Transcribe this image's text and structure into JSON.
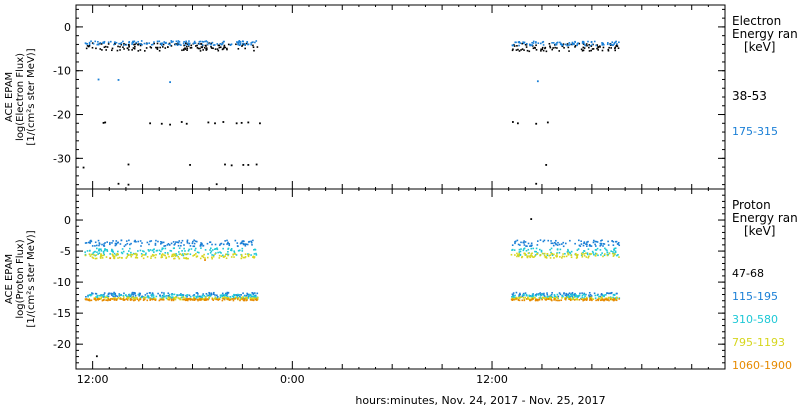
{
  "chart_data": [
    {
      "type": "scatter",
      "panel": "electron",
      "ylabel": [
        "ACE EPAM",
        "log(Electron Flux)",
        "[1/(cm²s ster MeV)]"
      ],
      "ylim": [
        -37,
        5
      ],
      "yticks": [
        0,
        -10,
        -20,
        -30
      ],
      "legend_title": [
        "Electron",
        "Energy ran",
        "[keV]"
      ],
      "series": [
        {
          "name": "38-53",
          "color": "#000000",
          "segments": [
            {
              "x": [
                11.5,
                21.9
              ],
              "level": -4.4,
              "noise": 0.9
            },
            {
              "x": [
                37.1,
                43.6
              ],
              "level": -4.5,
              "noise": 0.9
            }
          ],
          "outliers": [
            [
              12.6,
              -21.7
            ],
            [
              12.7,
              -21.6
            ],
            [
              15.4,
              -21.8
            ],
            [
              16.1,
              -21.9
            ],
            [
              16.6,
              -22.1
            ],
            [
              17.3,
              -21.5
            ],
            [
              17.6,
              -21.9
            ],
            [
              18.9,
              -21.6
            ],
            [
              19.3,
              -21.8
            ],
            [
              19.8,
              -21.5
            ],
            [
              20.6,
              -21.8
            ],
            [
              20.9,
              -21.7
            ],
            [
              21.3,
              -21.6
            ],
            [
              22.0,
              -21.8
            ],
            [
              37.2,
              -21.5
            ],
            [
              37.5,
              -21.8
            ],
            [
              38.6,
              -21.9
            ],
            [
              39.3,
              -21.6
            ],
            [
              14.1,
              -31.2
            ],
            [
              17.8,
              -31.3
            ],
            [
              19.9,
              -31.2
            ],
            [
              20.3,
              -31.4
            ],
            [
              21.0,
              -31.3
            ],
            [
              21.3,
              -31.3
            ],
            [
              21.8,
              -31.2
            ],
            [
              11.4,
              -31.9
            ],
            [
              13.5,
              -35.6
            ],
            [
              14.1,
              -35.8
            ],
            [
              19.4,
              -35.7
            ],
            [
              38.6,
              -35.6
            ],
            [
              39.2,
              -31.3
            ]
          ]
        },
        {
          "name": "175-315",
          "color": "#1a7fd6",
          "segments": [
            {
              "x": [
                11.5,
                21.9
              ],
              "level": -3.5,
              "noise": 0.5
            },
            {
              "x": [
                37.1,
                43.6
              ],
              "level": -3.6,
              "noise": 0.5
            }
          ],
          "outliers": [
            [
              12.3,
              -11.8
            ],
            [
              13.5,
              -11.9
            ],
            [
              16.6,
              -12.4
            ],
            [
              38.7,
              -12.2
            ]
          ]
        }
      ]
    },
    {
      "type": "scatter",
      "panel": "proton",
      "ylabel": [
        "ACE EPAM",
        "log(Proton Flux)",
        "[1/(cm²s ster MeV)]"
      ],
      "ylim": [
        -24,
        5
      ],
      "yticks": [
        0,
        -5,
        -10,
        -15,
        -20
      ],
      "legend_title": [
        "Proton",
        "Energy ran",
        "[keV]"
      ],
      "series": [
        {
          "name": "47-68",
          "color": "#000000",
          "segments": [],
          "outliers": [
            [
              38.3,
              0.3
            ],
            [
              12.2,
              -21.8
            ]
          ]
        },
        {
          "name": "115-195",
          "color": "#1a7fd6",
          "segments": [
            {
              "x": [
                11.5,
                21.9
              ],
              "level": -3.6,
              "noise": 0.5
            },
            {
              "x": [
                37.1,
                43.6
              ],
              "level": -3.6,
              "noise": 0.5
            },
            {
              "x": [
                11.5,
                21.9
              ],
              "level": -11.9,
              "noise": 0.35
            },
            {
              "x": [
                37.1,
                43.6
              ],
              "level": -11.9,
              "noise": 0.35
            }
          ],
          "outliers": []
        },
        {
          "name": "310-580",
          "color": "#1ec8d6",
          "segments": [
            {
              "x": [
                11.5,
                21.9
              ],
              "level": -5.0,
              "noise": 0.6
            },
            {
              "x": [
                37.1,
                43.6
              ],
              "level": -5.0,
              "noise": 0.6
            },
            {
              "x": [
                11.5,
                21.9
              ],
              "level": -12.2,
              "noise": 0.35
            },
            {
              "x": [
                37.1,
                43.6
              ],
              "level": -12.2,
              "noise": 0.35
            }
          ],
          "outliers": []
        },
        {
          "name": "795-1193",
          "color": "#d6d61e",
          "segments": [
            {
              "x": [
                11.5,
                21.9
              ],
              "level": -5.7,
              "noise": 0.4
            },
            {
              "x": [
                37.1,
                43.6
              ],
              "level": -5.6,
              "noise": 0.4
            },
            {
              "x": [
                11.5,
                21.9
              ],
              "level": -12.5,
              "noise": 0.2
            },
            {
              "x": [
                37.1,
                43.6
              ],
              "level": -12.5,
              "noise": 0.2
            }
          ],
          "outliers": []
        },
        {
          "name": "1060-1900",
          "color": "#e68a00",
          "segments": [
            {
              "x": [
                11.5,
                21.9
              ],
              "level": -12.7,
              "noise": 0.15
            },
            {
              "x": [
                37.1,
                43.6
              ],
              "level": -12.7,
              "noise": 0.15
            }
          ],
          "outliers": [
            [
              18.7,
              -6.3
            ],
            [
              13.0,
              -6.0
            ]
          ]
        }
      ]
    }
  ],
  "x_axis": {
    "range_hours": [
      11,
      50
    ],
    "major_ticks": [
      {
        "value": 12,
        "label": "12:00"
      },
      {
        "value": 24,
        "label": "0:00"
      },
      {
        "value": 36,
        "label": "12:00"
      }
    ],
    "minor_step_hours": 3,
    "xlabel": "hours:minutes, Nov. 24, 2017 - Nov. 25, 2017"
  }
}
